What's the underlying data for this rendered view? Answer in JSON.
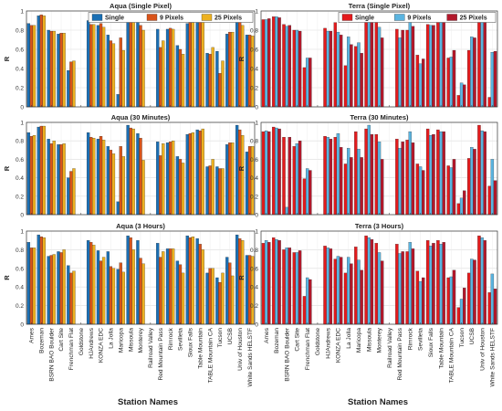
{
  "figure": {
    "xlabel": "Station Names",
    "ylabel": "R",
    "colors": {
      "aqua": [
        "#1a6fb4",
        "#d95319",
        "#edb120"
      ],
      "terra": [
        "#e41a1c",
        "#5ab4e0",
        "#b2182b"
      ]
    }
  },
  "chart_data": [
    {
      "type": "bar",
      "title": "Aqua (Single Pixel)",
      "ylabel": "R",
      "ylim": [
        0,
        1
      ],
      "yticks": [
        "0",
        "0.2",
        "0.4",
        "0.6",
        "0.8",
        "1"
      ],
      "grid": true,
      "legend_position": "top",
      "categories": [
        "Ames",
        "Bozeman",
        "BSRN BAO Boulder",
        "Cart Site",
        "Frenchman Flat",
        "Goldstone",
        "HJAndrews",
        "KONZA EDC",
        "La Jolla",
        "Maricopa",
        "Missoula",
        "Monterey",
        "Railroad Valley",
        "Red Mountain Pass",
        "Rimrock",
        "Sevilleta",
        "Sioux Falls",
        "Table Mountain",
        "TABLE Mountain CA",
        "Tucson",
        "UCSB",
        "Univ of Houston",
        "White Sands HELSTF"
      ],
      "series": [
        {
          "name": "Single",
          "values": [
            0.87,
            0.95,
            0.8,
            0.76,
            0.38,
            0,
            0.9,
            0.85,
            0.75,
            0.13,
            0.96,
            0.9,
            0,
            0.81,
            0.81,
            0.64,
            0.87,
            0.92,
            0.56,
            0.58,
            0.76,
            0.96,
            0.75
          ]
        },
        {
          "name": "9 Pixels",
          "values": [
            0.85,
            0.96,
            0.79,
            0.77,
            0.47,
            0,
            0.86,
            0.87,
            0.69,
            0.72,
            0.93,
            0.85,
            0,
            0.62,
            0.82,
            0.6,
            0.88,
            0.92,
            0.55,
            0.35,
            0.78,
            0.9,
            0.75
          ]
        },
        {
          "name": "25 Pixels",
          "values": [
            0.85,
            0.95,
            0.79,
            0.77,
            0.48,
            0,
            0.86,
            0.83,
            0.66,
            0.59,
            0.89,
            0.8,
            0,
            0.69,
            0.81,
            0.55,
            0.88,
            0.91,
            0.62,
            0.48,
            0.78,
            0.85,
            0.74
          ]
        }
      ]
    },
    {
      "type": "bar",
      "title": "Terra (Single Pixel)",
      "ylabel": "R",
      "ylim": [
        0,
        1
      ],
      "yticks": [
        "0",
        "0.2",
        "0.4",
        "0.6",
        "0.8",
        "1"
      ],
      "grid": true,
      "legend_position": "top",
      "categories": [
        "Ames",
        "Bozeman",
        "BSRN BAO Boulder",
        "Cart Site",
        "Frenchman Flat",
        "Goldstone",
        "HJAndrews",
        "KONZA EDC",
        "La Jolla",
        "Maricopa",
        "Missoula",
        "Monterey",
        "Railroad Valley",
        "Red Mountain Pass",
        "Rimrock",
        "Sevilleta",
        "Sioux Falls",
        "Table Mountain",
        "TABLE Mountain CA",
        "Tucson",
        "UCSB",
        "Univ of Houston",
        "White Sands HELSTF"
      ],
      "series": [
        {
          "name": "Single",
          "values": [
            0.91,
            0.94,
            0.86,
            0.8,
            0.41,
            0,
            0.82,
            0.88,
            0.43,
            0.63,
            0.95,
            0.89,
            0,
            0.81,
            0.8,
            0.54,
            0.86,
            0.93,
            0.51,
            0.12,
            0.59,
            0.97,
            0.1
          ]
        },
        {
          "name": "9 Pixels",
          "values": [
            0.91,
            0.94,
            0.84,
            0.8,
            0.51,
            0,
            0.79,
            0.78,
            0.73,
            0.67,
            0.96,
            0.83,
            0,
            0.72,
            0.9,
            0.45,
            0.85,
            0.91,
            0.52,
            0.25,
            0.73,
            0.92,
            0.57
          ]
        },
        {
          "name": "25 Pixels",
          "values": [
            0.92,
            0.93,
            0.85,
            0.79,
            0.51,
            0,
            0.79,
            0.75,
            0.65,
            0.56,
            0.93,
            0.72,
            0,
            0.8,
            0.84,
            0.5,
            0.85,
            0.9,
            0.59,
            0.23,
            0.72,
            0.89,
            0.58
          ]
        }
      ]
    },
    {
      "type": "bar",
      "title": "Aqua (30 Minutes)",
      "ylabel": "R",
      "ylim": [
        0,
        1
      ],
      "yticks": [
        "0",
        "0.2",
        "0.4",
        "0.6",
        "0.8",
        "1"
      ],
      "grid": true,
      "categories": [
        "Ames",
        "Bozeman",
        "BSRN BAO Boulder",
        "Cart Site",
        "Frenchman Flat",
        "Goldstone",
        "HJAndrews",
        "KONZA EDC",
        "La Jolla",
        "Maricopa",
        "Missoula",
        "Monterey",
        "Railroad Valley",
        "Red Mountain Pass",
        "Rimrock",
        "Sevilleta",
        "Sioux Falls",
        "Table Mountain",
        "TABLE Mountain CA",
        "Tucson",
        "UCSB",
        "Univ of Houston",
        "White Sands HELSTF"
      ],
      "series": [
        {
          "name": "Single",
          "values": [
            0.89,
            0.95,
            0.82,
            0.76,
            0.4,
            0,
            0.89,
            0.82,
            0.74,
            0.14,
            0.97,
            0.88,
            0,
            0.79,
            0.78,
            0.63,
            0.87,
            0.92,
            0.52,
            0.52,
            0.76,
            0.97,
            0.68
          ]
        },
        {
          "name": "9 Pixels",
          "values": [
            0.85,
            0.96,
            0.77,
            0.76,
            0.47,
            0,
            0.84,
            0.85,
            0.7,
            0.74,
            0.94,
            0.83,
            0,
            0.64,
            0.79,
            0.6,
            0.88,
            0.91,
            0.53,
            0.5,
            0.78,
            0.92,
            0.74
          ]
        },
        {
          "name": "25 Pixels",
          "values": [
            0.86,
            0.96,
            0.8,
            0.77,
            0.5,
            0,
            0.83,
            0.81,
            0.66,
            0.63,
            0.93,
            0.59,
            0,
            0.77,
            0.8,
            0.56,
            0.89,
            0.93,
            0.6,
            0.5,
            0.78,
            0.86,
            0.74
          ]
        }
      ]
    },
    {
      "type": "bar",
      "title": "Terra (30 Minutes)",
      "ylabel": "R",
      "ylim": [
        0,
        1
      ],
      "yticks": [
        "0",
        "0.2",
        "0.4",
        "0.6",
        "0.8",
        "1"
      ],
      "grid": true,
      "categories": [
        "Ames",
        "Bozeman",
        "BSRN BAO Boulder",
        "Cart Site",
        "Frenchman Flat",
        "Goldstone",
        "HJAndrews",
        "KONZA EDC",
        "La Jolla",
        "Maricopa",
        "Missoula",
        "Monterey",
        "Railroad Valley",
        "Red Mountain Pass",
        "Rimrock",
        "Sevilleta",
        "Sioux Falls",
        "Table Mountain",
        "TABLE Mountain CA",
        "Tucson",
        "UCSB",
        "Univ of Houston",
        "White Sands HELSTF"
      ],
      "series": [
        {
          "name": "Single",
          "values": [
            0.9,
            0.95,
            0.84,
            0.74,
            0.39,
            0,
            0.85,
            0.84,
            0.55,
            0.9,
            0.93,
            0.87,
            0,
            0.82,
            0.81,
            0.55,
            0.93,
            0.92,
            0.53,
            0.12,
            0.61,
            0.97,
            0.31
          ]
        },
        {
          "name": "9 Pixels",
          "values": [
            0.91,
            0.94,
            0.08,
            0.77,
            0.5,
            0,
            0.84,
            0.88,
            0.72,
            0.71,
            0.97,
            0.79,
            0,
            0.72,
            0.9,
            0.52,
            0.86,
            0.9,
            0.51,
            0.18,
            0.73,
            0.91,
            0.6
          ]
        },
        {
          "name": "25 Pixels",
          "values": [
            0.9,
            0.93,
            0.84,
            0.8,
            0.48,
            0,
            0.82,
            0.73,
            0.62,
            0.62,
            0.87,
            0.6,
            0,
            0.79,
            0.78,
            0.48,
            0.87,
            0.9,
            0.6,
            0.26,
            0.71,
            0.9,
            0.37
          ]
        }
      ]
    },
    {
      "type": "bar",
      "title": "Aqua (3 Hours)",
      "ylabel": "R",
      "ylim": [
        0,
        1
      ],
      "yticks": [
        "0",
        "0.2",
        "0.4",
        "0.6",
        "0.8",
        "1"
      ],
      "grid": true,
      "categories": [
        "Ames",
        "Bozeman",
        "BSRN BAO Boulder",
        "Cart Site",
        "Frenchman Flat",
        "Goldstone",
        "HJAndrews",
        "KONZA EDC",
        "La Jolla",
        "Maricopa",
        "Missoula",
        "Monterey",
        "Railroad Valley",
        "Red Mountain Pass",
        "Rimrock",
        "Sevilleta",
        "Sioux Falls",
        "Table Mountain",
        "TABLE Mountain CA",
        "Tucson",
        "UCSB",
        "Univ of Houston",
        "White Sands HELSTF"
      ],
      "series": [
        {
          "name": "Single",
          "values": [
            0.88,
            0.96,
            0.73,
            0.78,
            0.63,
            0,
            0.9,
            0.79,
            0.78,
            0.59,
            0.95,
            0.9,
            0,
            0.87,
            0.81,
            0.68,
            0.95,
            0.92,
            0.55,
            0.5,
            0.72,
            0.96,
            0.74
          ]
        },
        {
          "name": "9 Pixels",
          "values": [
            0.82,
            0.94,
            0.74,
            0.77,
            0.55,
            0,
            0.88,
            0.68,
            0.62,
            0.66,
            0.93,
            0.71,
            0,
            0.72,
            0.81,
            0.64,
            0.93,
            0.86,
            0.6,
            0.45,
            0.66,
            0.92,
            0.74
          ]
        },
        {
          "name": "25 Pixels",
          "values": [
            0.82,
            0.93,
            0.75,
            0.8,
            0.57,
            0,
            0.85,
            0.72,
            0.6,
            0.56,
            0.8,
            0.65,
            0,
            0.78,
            0.81,
            0.55,
            0.94,
            0.8,
            0.6,
            0.55,
            0.52,
            0.9,
            0.73
          ]
        }
      ]
    },
    {
      "type": "bar",
      "title": "Terra (3 Hours)",
      "ylabel": "R",
      "ylim": [
        0,
        1
      ],
      "yticks": [
        "0",
        "0.2",
        "0.4",
        "0.6",
        "0.8",
        "1"
      ],
      "grid": true,
      "categories": [
        "Ames",
        "Bozeman",
        "BSRN BAO Boulder",
        "Cart Site",
        "Frenchman Flat",
        "Goldstone",
        "HJAndrews",
        "KONZA EDC",
        "La Jolla",
        "Maricopa",
        "Missoula",
        "Monterey",
        "Railroad Valley",
        "Red Mountain Pass",
        "Rimrock",
        "Sevilleta",
        "Sioux Falls",
        "Table Mountain",
        "TABLE Mountain CA",
        "Tucson",
        "UCSB",
        "Univ of Houston",
        "White Sands HELSTF"
      ],
      "series": [
        {
          "name": "Single",
          "values": [
            0.87,
            0.93,
            0.8,
            0.77,
            0.3,
            0,
            0.84,
            0.7,
            0.55,
            0.83,
            0.95,
            0.87,
            0,
            0.86,
            0.78,
            0.57,
            0.9,
            0.9,
            0.5,
            0.18,
            0.55,
            0.95,
            0.34
          ]
        },
        {
          "name": "9 Pixels",
          "values": [
            0.9,
            0.91,
            0.82,
            0.77,
            0.5,
            0,
            0.82,
            0.73,
            0.72,
            0.69,
            0.93,
            0.77,
            0,
            0.76,
            0.88,
            0.46,
            0.84,
            0.86,
            0.51,
            0.27,
            0.7,
            0.93,
            0.54
          ]
        },
        {
          "name": "25 Pixels",
          "values": [
            0.88,
            0.9,
            0.82,
            0.79,
            0.48,
            0,
            0.81,
            0.72,
            0.65,
            0.58,
            0.91,
            0.68,
            0,
            0.78,
            0.81,
            0.5,
            0.87,
            0.88,
            0.58,
            0.39,
            0.69,
            0.9,
            0.38
          ]
        }
      ]
    }
  ]
}
